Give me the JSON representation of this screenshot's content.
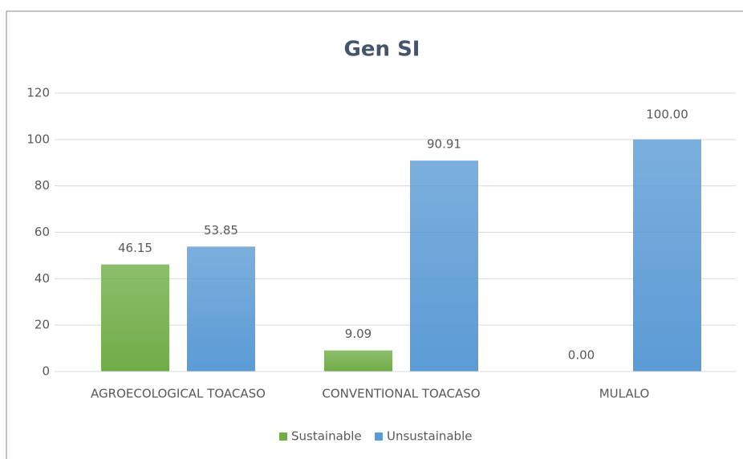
{
  "chart_data": {
    "type": "bar",
    "title": "Gen SI",
    "categories": [
      "AGROECOLOGICAL TOACASO",
      "CONVENTIONAL TOACASO",
      "MULALO"
    ],
    "series": [
      {
        "name": "Sustainable",
        "color": "#70ad47",
        "values": [
          46.15,
          9.09,
          0
        ],
        "value_labels": [
          "46.15",
          "9.09",
          "0.00"
        ]
      },
      {
        "name": "Unsustainable",
        "color": "#5b9bd5",
        "values": [
          53.85,
          90.91,
          100
        ],
        "value_labels": [
          "53.85",
          "90.91",
          "100.00"
        ]
      }
    ],
    "ylim": [
      0,
      120
    ],
    "yticks": [
      0,
      20,
      40,
      60,
      80,
      100,
      120
    ],
    "grid": true,
    "legend": "bottom"
  }
}
